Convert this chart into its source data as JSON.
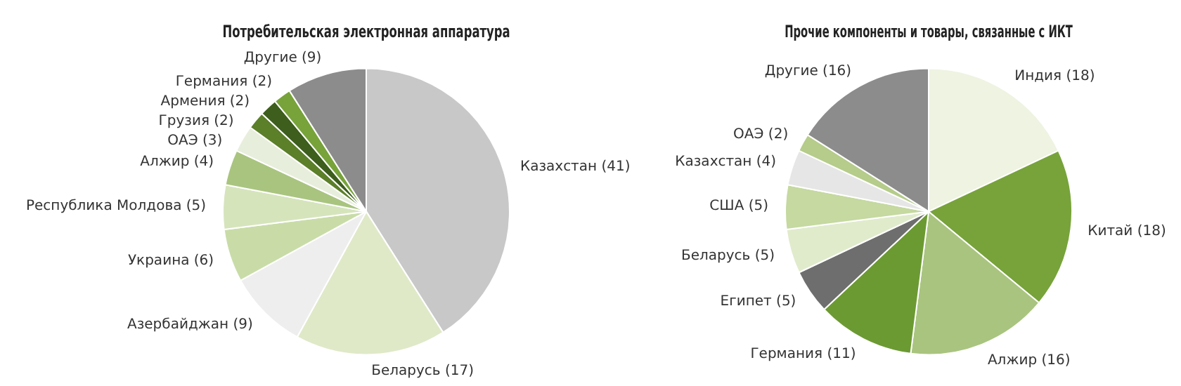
{
  "chart_data": [
    {
      "type": "pie",
      "title": "Потребительская электронная аппаратура",
      "categories": [
        "Казахстан (41)",
        "Беларусь (17)",
        "Азербайджан (9)",
        "Украина (6)",
        "Республика Молдова (5)",
        "Алжир (4)",
        "ОАЭ (3)",
        "Грузия (2)",
        "Армения (2)",
        "Германия (2)",
        "Другие (9)"
      ],
      "values": [
        41,
        17,
        9,
        6,
        5,
        4,
        3,
        2,
        2,
        2,
        9
      ],
      "colors": [
        "#c8c8c8",
        "#dfe9c8",
        "#eeeeee",
        "#c9dca8",
        "#d6e4bc",
        "#a9c47f",
        "#e8eedc",
        "#5c7f2a",
        "#3d5e1d",
        "#77a33a",
        "#8c8c8c"
      ]
    },
    {
      "type": "pie",
      "title": "Прочие компоненты и товары, связанные с ИКТ",
      "categories": [
        "Индия (18)",
        "Китай (18)",
        "Алжир (16)",
        "Германия (11)",
        "Египет (5)",
        "Беларусь (5)",
        "США (5)",
        "Казахстан (4)",
        "ОАЭ (2)",
        "Другие (16)"
      ],
      "values": [
        18,
        18,
        16,
        11,
        5,
        5,
        5,
        4,
        2,
        16
      ],
      "colors": [
        "#eef3e2",
        "#77a33a",
        "#a9c47f",
        "#6c9a32",
        "#6e6e6e",
        "#e0ebcc",
        "#c5d9a0",
        "#e6e6e6",
        "#b5cc8a",
        "#8c8c8c"
      ]
    }
  ]
}
